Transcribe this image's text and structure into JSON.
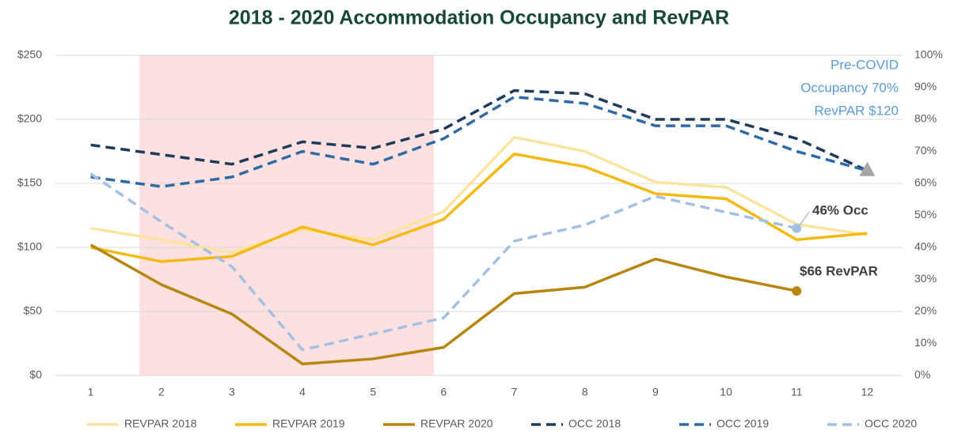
{
  "chart_data": {
    "type": "line",
    "title": "2018 - 2020 Accommodation Occupancy and RevPAR",
    "categories": [
      "1",
      "2",
      "3",
      "4",
      "5",
      "6",
      "7",
      "8",
      "9",
      "10",
      "11",
      "12"
    ],
    "ylim": [
      0,
      250
    ],
    "yticks": [
      {
        "value": 0,
        "label": "$0"
      },
      {
        "value": 50,
        "label": "$50"
      },
      {
        "value": 100,
        "label": "$100"
      },
      {
        "value": 150,
        "label": "$150"
      },
      {
        "value": 200,
        "label": "$200"
      },
      {
        "value": 250,
        "label": "$250"
      }
    ],
    "y2lim": [
      0,
      100
    ],
    "y2ticks": [
      {
        "value": 0,
        "label": "0%"
      },
      {
        "value": 10,
        "label": "10%"
      },
      {
        "value": 20,
        "label": "20%"
      },
      {
        "value": 30,
        "label": "30%"
      },
      {
        "value": 40,
        "label": "40%"
      },
      {
        "value": 50,
        "label": "50%"
      },
      {
        "value": 60,
        "label": "60%"
      },
      {
        "value": 70,
        "label": "70%"
      },
      {
        "value": 80,
        "label": "80%"
      },
      {
        "value": 90,
        "label": "90%"
      },
      {
        "value": 100,
        "label": "100%"
      }
    ],
    "grid": true,
    "legend": "bottom",
    "series": [
      {
        "name": "REVPAR 2018",
        "color": "#fbe3a0",
        "line_style": "solid",
        "values": [
          115,
          106,
          96,
          114,
          106,
          128,
          186,
          175,
          151,
          147,
          118,
          110
        ]
      },
      {
        "name": "REVPAR 2019",
        "color": "#f4b912",
        "line_style": "solid",
        "values": [
          100,
          89,
          93,
          116,
          102,
          122,
          173,
          163,
          142,
          138,
          106,
          111
        ]
      },
      {
        "name": "REVPAR 2020",
        "color": "#b8860f",
        "line_style": "solid",
        "values": [
          102,
          71,
          48,
          9,
          13,
          22,
          64,
          69,
          91,
          77,
          66,
          null
        ]
      },
      {
        "name": "OCC 2018",
        "color": "#1f3b5c",
        "line_style": "dashed",
        "axis": "y2",
        "values": [
          72,
          69,
          66,
          73,
          71,
          77,
          89,
          88,
          80,
          80,
          74,
          64
        ]
      },
      {
        "name": "OCC 2019",
        "color": "#2e6aa5",
        "line_style": "dashed",
        "axis": "y2",
        "values": [
          62,
          59,
          62,
          70,
          66,
          74,
          87,
          85,
          78,
          78,
          70,
          64
        ]
      },
      {
        "name": "OCC 2020",
        "color": "#a3c0e3",
        "line_style": "dashed",
        "axis": "y2",
        "values": [
          63,
          48,
          34,
          8,
          13,
          18,
          42,
          47,
          56,
          51,
          46,
          null
        ]
      }
    ],
    "annotations": [
      "Pre-COVID",
      "Occupancy 70%",
      "RevPAR $120",
      "46% Occ",
      "$66 RevPAR"
    ]
  }
}
